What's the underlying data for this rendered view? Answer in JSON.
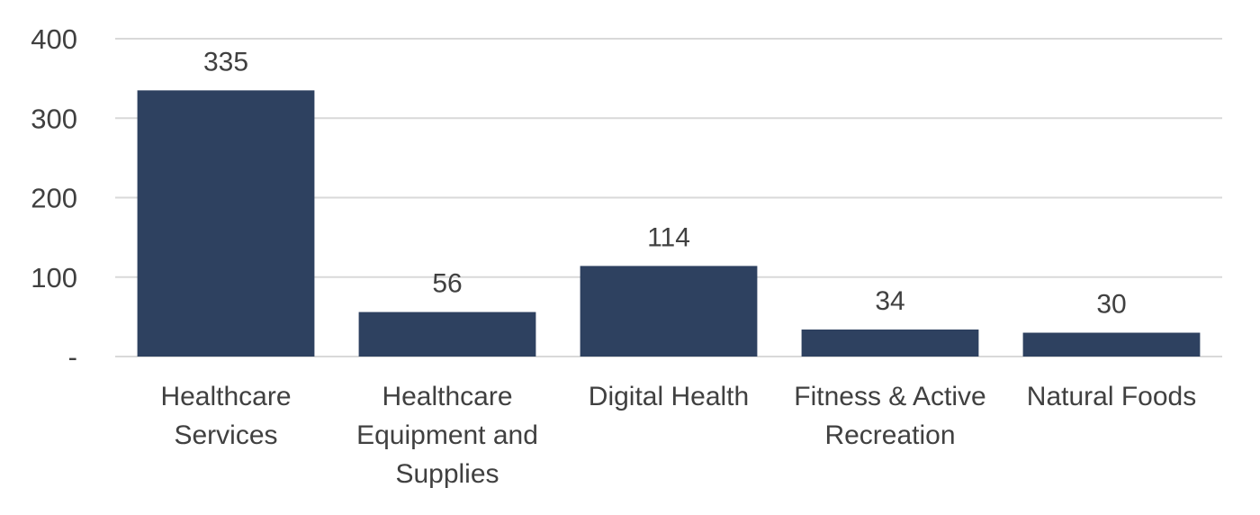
{
  "chart_data": {
    "type": "bar",
    "categories": [
      [
        "Healthcare",
        "Services"
      ],
      [
        "Healthcare",
        "Equipment and",
        "Supplies"
      ],
      [
        "Digital Health"
      ],
      [
        "Fitness & Active",
        "Recreation"
      ],
      [
        "Natural Foods"
      ]
    ],
    "values": [
      335,
      56,
      114,
      34,
      30
    ],
    "data_labels": [
      "335",
      "56",
      "114",
      "34",
      "30"
    ],
    "y_ticks": [
      {
        "value": 0,
        "label": "-"
      },
      {
        "value": 100,
        "label": "100"
      },
      {
        "value": 200,
        "label": "200"
      },
      {
        "value": 300,
        "label": "300"
      },
      {
        "value": 400,
        "label": "400"
      }
    ],
    "ylim": [
      0,
      400
    ],
    "grid": true,
    "legend": "none",
    "bar_color": "#2e4160"
  }
}
